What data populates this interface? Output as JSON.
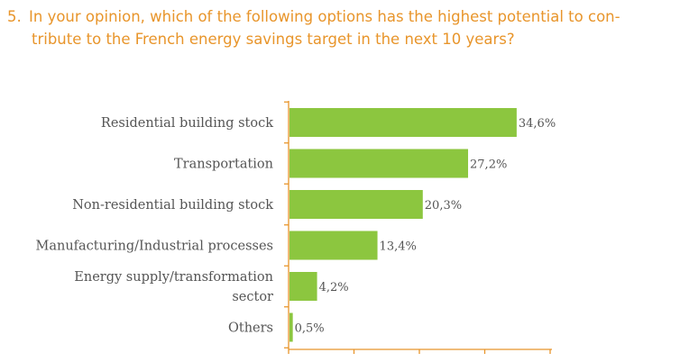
{
  "question": {
    "number": "5.",
    "line1": "In your opinion, which of the following options has the highest potential to con-",
    "line2": "tribute to the French energy savings target in the next 10 years?"
  },
  "chart_data": {
    "type": "bar",
    "orientation": "horizontal",
    "categories": [
      [
        "Residential building stock"
      ],
      [
        "Transportation"
      ],
      [
        "Non-residential building stock"
      ],
      [
        "Manufacturing/Industrial processes"
      ],
      [
        "Energy supply/transformation",
        "sector"
      ],
      [
        "Others"
      ]
    ],
    "values": [
      34.6,
      27.2,
      20.3,
      13.4,
      4.2,
      0.5
    ],
    "value_labels": [
      "34,6%",
      "27,2%",
      "20,3%",
      "13,4%",
      "4,2%",
      "0,5%"
    ],
    "xlim": [
      0,
      40
    ],
    "bar_color": "#8cc63f",
    "axis_color": "#e8952b",
    "grid": false,
    "legend": "none"
  }
}
